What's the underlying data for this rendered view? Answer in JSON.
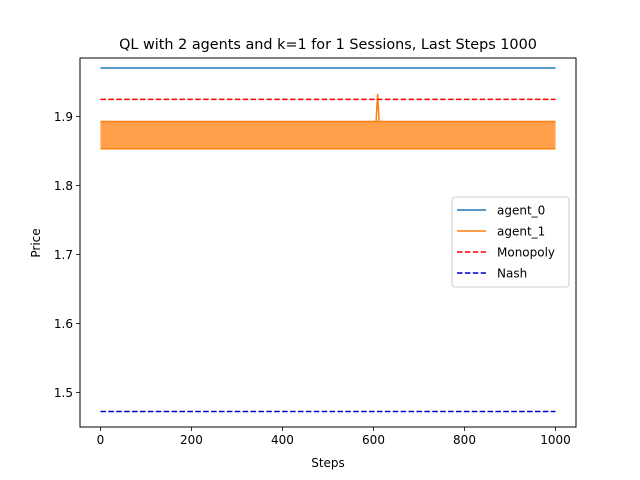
{
  "chart_data": {
    "type": "line",
    "title": "QL with 2 agents and k=1 for 1 Sessions, Last Steps 1000",
    "xlabel": "Steps",
    "ylabel": "Price",
    "xlim": [
      -45,
      1045
    ],
    "ylim": [
      1.45,
      1.985
    ],
    "xticks": [
      0,
      200,
      400,
      600,
      800,
      1000
    ],
    "xtick_labels": [
      "0",
      "200",
      "400",
      "600",
      "800",
      "1000"
    ],
    "yticks": [
      1.5,
      1.6,
      1.7,
      1.8,
      1.9
    ],
    "ytick_labels": [
      "1.5",
      "1.6",
      "1.7",
      "1.8",
      "1.9"
    ],
    "grid": false,
    "legend_position": "center-right",
    "series": [
      {
        "name": "agent_0",
        "color": "#1f77b4",
        "style": "solid",
        "x": [
          0,
          1000
        ],
        "y": [
          1.9705,
          1.9705
        ]
      },
      {
        "name": "agent_1",
        "color": "#ff7f0e",
        "style": "solid",
        "oscillation": {
          "x_start": 0,
          "x_end": 1000,
          "low": 1.8535,
          "high": 1.893
        },
        "spike": {
          "x": 609,
          "y": 1.933
        }
      },
      {
        "name": "Monopoly",
        "color": "#ff0000",
        "style": "dashed",
        "x": [
          0,
          1000
        ],
        "y": [
          1.925,
          1.925
        ]
      },
      {
        "name": "Nash",
        "color": "#0000cc",
        "style": "dashed",
        "x": [
          0,
          1000
        ],
        "y": [
          1.4725,
          1.4725
        ]
      }
    ]
  }
}
